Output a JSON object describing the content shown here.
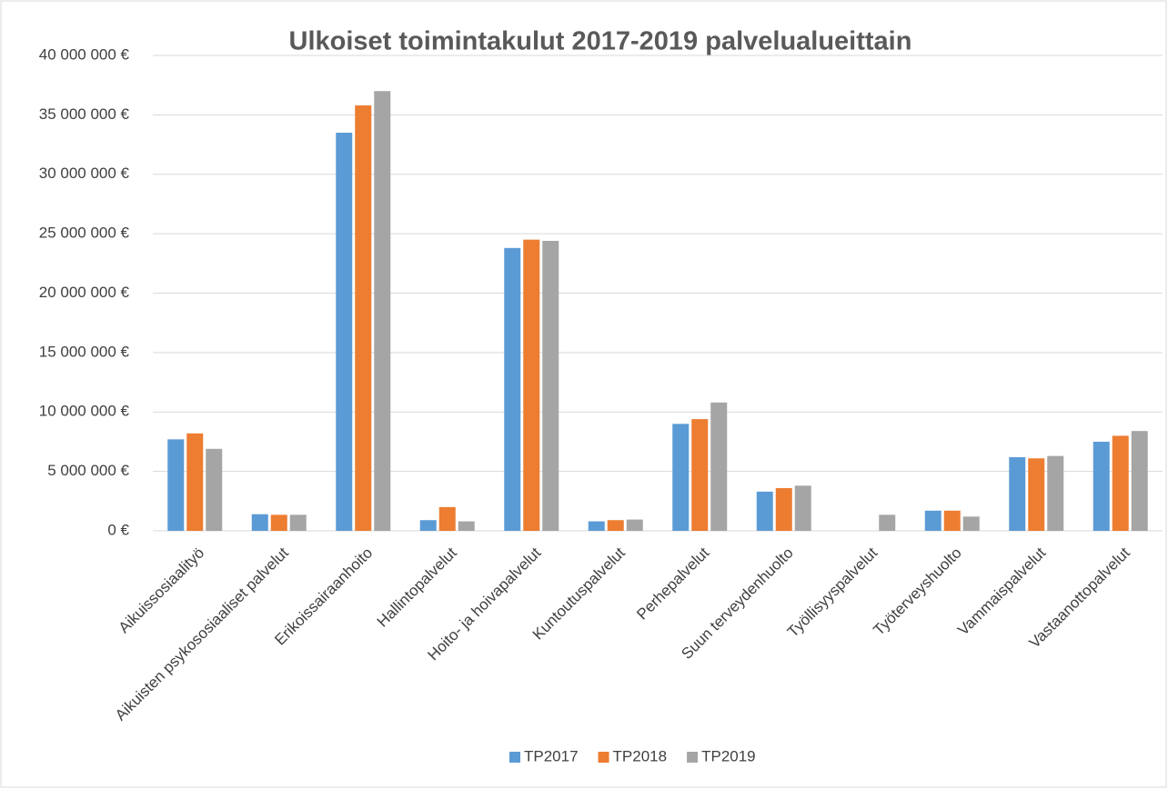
{
  "chart_data": {
    "type": "bar",
    "title": "Ulkoiset toimintakulut 2017-2019 palvelualueittain",
    "categories": [
      "Aikuissosiaalityö",
      "Aikuisten psykososiaaliset palvelut",
      "Erikoissairaanhoito",
      "Hallintopalvelut",
      "Hoito- ja hoivapalvelut",
      "Kuntoutuspalvelut",
      "Perhepalvelut",
      "Suun terveydenhuolto",
      "Työllisyyspalvelut",
      "Työterveyshuolto",
      "Vammaispalvelut",
      "Vastaanottopalvelut"
    ],
    "series": [
      {
        "name": "TP2017",
        "color": "#5b9bd5",
        "values": [
          7700000,
          1400000,
          33500000,
          900000,
          23800000,
          800000,
          9000000,
          3300000,
          0,
          1700000,
          6200000,
          7500000
        ]
      },
      {
        "name": "TP2018",
        "color": "#ed7d31",
        "values": [
          8200000,
          1350000,
          35800000,
          2000000,
          24500000,
          900000,
          9400000,
          3600000,
          0,
          1700000,
          6100000,
          8000000
        ]
      },
      {
        "name": "TP2019",
        "color": "#a5a5a5",
        "values": [
          6900000,
          1350000,
          37000000,
          800000,
          24400000,
          950000,
          10800000,
          3800000,
          1350000,
          1200000,
          6300000,
          8400000
        ]
      }
    ],
    "ylim": [
      0,
      40000000
    ],
    "yticks": [
      {
        "value": 0,
        "label": "0 €"
      },
      {
        "value": 5000000,
        "label": "5 000 000 €"
      },
      {
        "value": 10000000,
        "label": "10 000 000 €"
      },
      {
        "value": 15000000,
        "label": "15 000 000 €"
      },
      {
        "value": 20000000,
        "label": "20 000 000 €"
      },
      {
        "value": 25000000,
        "label": "25 000 000 €"
      },
      {
        "value": 30000000,
        "label": "30 000 000 €"
      },
      {
        "value": 35000000,
        "label": "35 000 000 €"
      },
      {
        "value": 40000000,
        "label": "40 000 000 €"
      }
    ],
    "grid": true,
    "legend": "bottom"
  }
}
